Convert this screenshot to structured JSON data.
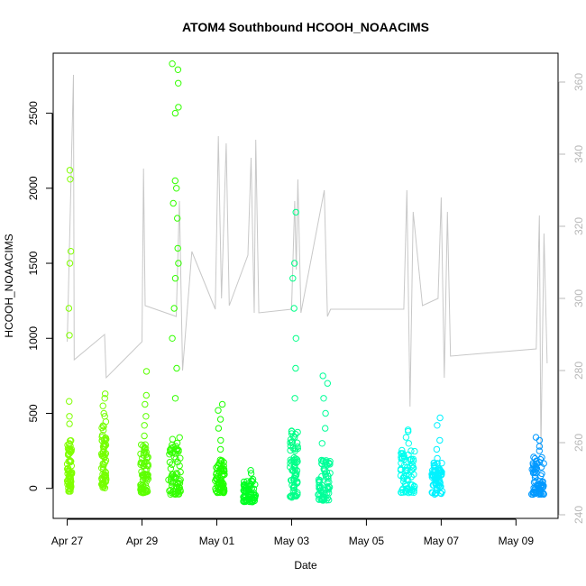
{
  "chart_data": {
    "type": "scatter",
    "title": "ATOM4 Southbound HCOOH_NOAACIMS",
    "xlabel": "Date",
    "ylabel": "HCOOH_NOAACIMS",
    "x_ticks": [
      "Apr 27",
      "Apr 29",
      "May 01",
      "May 03",
      "May 05",
      "May 07",
      "May 09"
    ],
    "xlim": [
      "2018-04-26T15:00",
      "2018-05-10T03:00"
    ],
    "ylim": [
      -200,
      2900
    ],
    "y_ticks": [
      0,
      500,
      1000,
      1500,
      2000,
      2500
    ],
    "y2lim": [
      239,
      368
    ],
    "y2_ticks": [
      240,
      260,
      280,
      300,
      320,
      340,
      360
    ],
    "grid": false,
    "legend": "none",
    "colors": {
      "secondary_line": "#c8c8c8",
      "right_axis": "#b8b8b8"
    },
    "series": [
      {
        "day": "2018-04-27",
        "start": "2018-04-27T00:00",
        "end": "2018-04-27T03:00",
        "color": "#80ff00",
        "base_low": -20,
        "base_high": 320,
        "outliers": [
          480,
          430,
          580,
          1020,
          1200,
          1500,
          1580,
          2060,
          2120
        ]
      },
      {
        "day": "2018-04-28",
        "start": "2018-04-27T22:00",
        "end": "2018-04-28T01:00",
        "color": "#75ff00",
        "base_low": 0,
        "base_high": 460,
        "outliers": [
          500,
          550,
          630,
          600,
          480
        ]
      },
      {
        "day": "2018-04-29",
        "start": "2018-04-28T23:00",
        "end": "2018-04-29T04:00",
        "color": "#5cff00",
        "base_low": -30,
        "base_high": 300,
        "outliers": [
          350,
          420,
          480,
          560,
          620,
          780
        ]
      },
      {
        "day": "2018-04-30",
        "start": "2018-04-29T17:00",
        "end": "2018-04-30T01:00",
        "color": "#33ff00",
        "base_low": -40,
        "base_high": 340,
        "outliers": [
          600,
          800,
          1000,
          1200,
          1400,
          1500,
          1600,
          1800,
          1900,
          2000,
          2050,
          2500,
          2540,
          2700,
          2790,
          2830
        ]
      },
      {
        "day": "2018-05-01",
        "start": "2018-04-30T23:00",
        "end": "2018-05-01T05:00",
        "color": "#1fff00",
        "base_low": -30,
        "base_high": 200,
        "outliers": [
          260,
          320,
          400,
          460,
          520,
          560
        ]
      },
      {
        "day": "2018-05-02",
        "start": "2018-05-01T17:00",
        "end": "2018-05-02T01:00",
        "color": "#00ff22",
        "base_low": -90,
        "base_high": 70,
        "outliers": [
          100,
          120
        ]
      },
      {
        "day": "2018-05-03",
        "start": "2018-05-02T23:00",
        "end": "2018-05-03T04:00",
        "color": "#00ff88",
        "base_low": -60,
        "base_high": 400,
        "outliers": [
          600,
          800,
          1000,
          1200,
          1400,
          1500,
          1840
        ]
      },
      {
        "day": "2018-05-04",
        "start": "2018-05-03T17:00",
        "end": "2018-05-04T01:00",
        "color": "#00ff99",
        "base_low": -80,
        "base_high": 200,
        "outliers": [
          300,
          400,
          500,
          600,
          700,
          750
        ]
      },
      {
        "day": "2018-05-06",
        "start": "2018-05-05T22:00",
        "end": "2018-05-06T07:00",
        "color": "#00ffee",
        "base_low": -30,
        "base_high": 260,
        "outliers": [
          300,
          340,
          380,
          390
        ]
      },
      {
        "day": "2018-05-07",
        "start": "2018-05-06T18:00",
        "end": "2018-05-07T01:00",
        "color": "#00f2ff",
        "base_low": -40,
        "base_high": 170,
        "outliers": [
          200,
          260,
          320,
          420,
          470
        ]
      },
      {
        "day": "2018-05-09",
        "start": "2018-05-09T10:00",
        "end": "2018-05-09T18:00",
        "color": "#0099ff",
        "base_low": -40,
        "base_high": 210,
        "outliers": [
          250,
          280,
          320,
          340
        ]
      }
    ],
    "secondary_line": [
      [
        "2018-04-27T00:00",
        288
      ],
      [
        "2018-04-27T04:00",
        362
      ],
      [
        "2018-04-27T04:30",
        283
      ],
      [
        "2018-04-28T00:00",
        290
      ],
      [
        "2018-04-28T01:00",
        278
      ],
      [
        "2018-04-29T00:00",
        288
      ],
      [
        "2018-04-29T01:00",
        336
      ],
      [
        "2018-04-29T02:00",
        298
      ],
      [
        "2018-04-29T22:00",
        295
      ],
      [
        "2018-04-30T00:00",
        327
      ],
      [
        "2018-04-30T02:00",
        280
      ],
      [
        "2018-04-30T08:00",
        313
      ],
      [
        "2018-04-30T23:00",
        297
      ],
      [
        "2018-05-01T01:00",
        345
      ],
      [
        "2018-05-01T03:00",
        300
      ],
      [
        "2018-05-01T06:00",
        343
      ],
      [
        "2018-05-01T08:00",
        298
      ],
      [
        "2018-05-01T20:00",
        312
      ],
      [
        "2018-05-01T22:00",
        339
      ],
      [
        "2018-05-02T00:00",
        296
      ],
      [
        "2018-05-02T01:00",
        344
      ],
      [
        "2018-05-02T03:00",
        296
      ],
      [
        "2018-05-03T00:00",
        297
      ],
      [
        "2018-05-03T02:00",
        327
      ],
      [
        "2018-05-03T03:00",
        308
      ],
      [
        "2018-05-03T04:00",
        333
      ],
      [
        "2018-05-03T06:00",
        296
      ],
      [
        "2018-05-03T21:00",
        330
      ],
      [
        "2018-05-03T23:00",
        295
      ],
      [
        "2018-05-04T01:00",
        297
      ],
      [
        "2018-05-06T00:00",
        297
      ],
      [
        "2018-05-06T02:00",
        330
      ],
      [
        "2018-05-06T04:00",
        270
      ],
      [
        "2018-05-06T06:00",
        324
      ],
      [
        "2018-05-06T12:00",
        298
      ],
      [
        "2018-05-06T22:00",
        300
      ],
      [
        "2018-05-07T00:00",
        328
      ],
      [
        "2018-05-07T02:00",
        278
      ],
      [
        "2018-05-07T04:00",
        324
      ],
      [
        "2018-05-07T06:00",
        284
      ],
      [
        "2018-05-09T13:00",
        286
      ],
      [
        "2018-05-09T15:00",
        323
      ],
      [
        "2018-05-09T16:00",
        258
      ],
      [
        "2018-05-09T18:00",
        318
      ],
      [
        "2018-05-09T20:00",
        282
      ]
    ]
  }
}
